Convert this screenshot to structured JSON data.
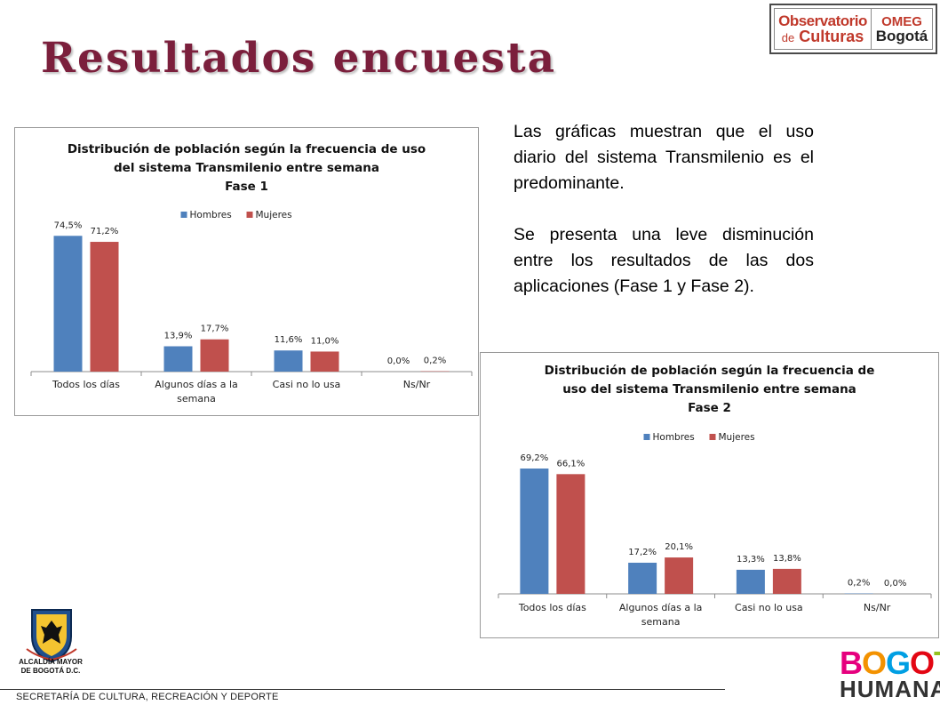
{
  "page": {
    "title": "Resultados encuesta",
    "paragraphs": [
      "Las gráficas muestran que el uso diario del sistema Transmilenio es el predominante.",
      "Se presenta una leve disminución entre los resultados de las dos aplicaciones (Fase 1 y Fase 2)."
    ]
  },
  "logo_observatorio": {
    "line1": "Observatorio",
    "line2_prefix": "de",
    "line2_word": "Culturas",
    "right1": "OMEG",
    "right2": "Bogotá"
  },
  "footer": {
    "alcaldia_line1": "ALCALDÍA MAYOR",
    "alcaldia_line2": "DE BOGOTÁ D.C.",
    "secretaria": "SECRETARÍA DE CULTURA, RECREACIÓN Y DEPORTE",
    "bogota_line1": "BOGOTÁ",
    "bogota_line2": "HUMANA"
  },
  "chart_data": [
    {
      "type": "bar",
      "title_lines": [
        "Distribución de población según la frecuencia de uso",
        "del sistema Transmilenio entre semana",
        "Fase 1"
      ],
      "categories": [
        "Todos los días",
        "Algunos días a la semana",
        "Casi no lo usa",
        "Ns/Nr"
      ],
      "category_lines": [
        [
          "Todos los días"
        ],
        [
          "Algunos días a la",
          "semana"
        ],
        [
          "Casi no lo usa"
        ],
        [
          "Ns/Nr"
        ]
      ],
      "series": [
        {
          "name": "Hombres",
          "color": "#4f81bd",
          "values": [
            74.5,
            13.9,
            11.6,
            0.0
          ],
          "labels": [
            "74,5%",
            "13,9%",
            "11,6%",
            "0,0%"
          ]
        },
        {
          "name": "Mujeres",
          "color": "#c0504d",
          "values": [
            71.2,
            17.7,
            11.0,
            0.2
          ],
          "labels": [
            "71,2%",
            "17,7%",
            "11,0%",
            "0,2%"
          ]
        }
      ],
      "ylim": [
        0,
        80
      ],
      "legend": "top-center",
      "grid": false
    },
    {
      "type": "bar",
      "title_lines": [
        "Distribución de población según la frecuencia de",
        "uso del sistema Transmilenio entre semana",
        "Fase 2"
      ],
      "categories": [
        "Todos los días",
        "Algunos días a la semana",
        "Casi no lo usa",
        "Ns/Nr"
      ],
      "category_lines": [
        [
          "Todos los días"
        ],
        [
          "Algunos días a la",
          "semana"
        ],
        [
          "Casi no lo usa"
        ],
        [
          "Ns/Nr"
        ]
      ],
      "series": [
        {
          "name": "Hombres",
          "color": "#4f81bd",
          "values": [
            69.2,
            17.2,
            13.3,
            0.2
          ],
          "labels": [
            "69,2%",
            "17,2%",
            "13,3%",
            "0,2%"
          ]
        },
        {
          "name": "Mujeres",
          "color": "#c0504d",
          "values": [
            66.1,
            20.1,
            13.8,
            0.0
          ],
          "labels": [
            "66,1%",
            "20,1%",
            "13,8%",
            "0,0%"
          ]
        }
      ],
      "ylim": [
        0,
        80
      ],
      "legend": "top-center",
      "grid": false
    }
  ]
}
